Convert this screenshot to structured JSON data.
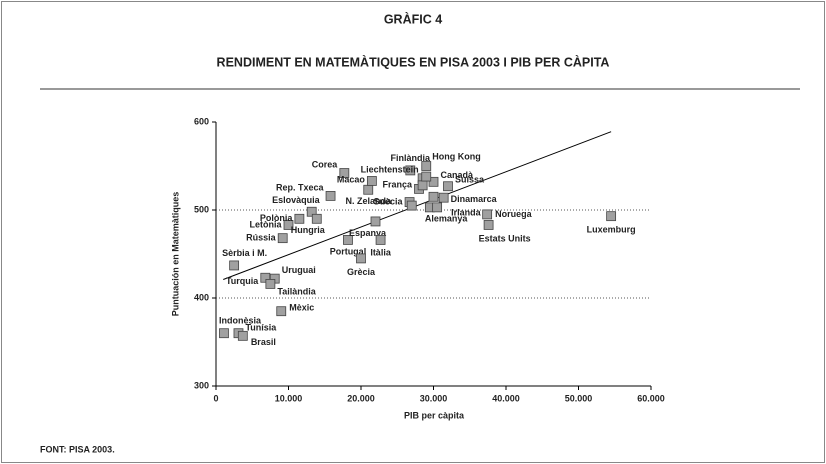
{
  "chart_data": {
    "type": "scatter",
    "heading": "GRÀFIC 4",
    "title": "RENDIMENT EN MATEMÀTIQUES EN PISA 2003 I PIB PER CÀPITA",
    "xlabel": "PIB per càpita",
    "ylabel": "Puntuación en Matemàtiques",
    "source": "FONT: PISA 2003.",
    "color": "#a0a0a0",
    "labels": [
      "Indonèsia",
      "Tunísia",
      "Brasil",
      "Mèxic",
      "Turquia",
      "Uruguai",
      "Tailàndia",
      "Sèrbia i M.",
      "Rússia",
      "Letònia",
      "Polònia",
      "Eslovàquia",
      "Hungria",
      "Rep. Txeca",
      "Corea",
      "Portugal",
      "Grècia",
      "Espanya",
      "N. Zelanda",
      "Macao",
      "Finlàndia",
      "Hong Kong",
      "Liechtenstein",
      "Canadà",
      "Suïssa",
      "França",
      "Suècia",
      "Dinamarca",
      "Alemanya",
      "Irlanda",
      null,
      null,
      null,
      null,
      "Noruega",
      "Estats Units",
      "Luxemburg",
      "Itàlia"
    ],
    "x": [
      1100,
      3100,
      3700,
      9000,
      6800,
      8100,
      7500,
      2500,
      9200,
      10000,
      11500,
      13200,
      13900,
      15800,
      17700,
      18200,
      20000,
      22000,
      21000,
      21500,
      26800,
      29000,
      28500,
      30000,
      32000,
      28000,
      26700,
      31400,
      29500,
      30500,
      28500,
      27000,
      30000,
      29000,
      37400,
      37600,
      54500,
      22700
    ],
    "values": [
      360,
      360,
      357,
      385,
      423,
      422,
      416,
      437,
      468,
      483,
      490,
      498,
      490,
      516,
      542,
      466,
      445,
      487,
      523,
      533,
      545,
      550,
      536,
      532,
      527,
      524,
      509,
      514,
      503,
      503,
      528,
      505,
      515,
      538,
      495,
      483,
      493,
      466
    ],
    "trendline": {
      "x": [
        1000,
        54500
      ],
      "values": [
        421,
        589
      ]
    },
    "xlim": [
      0,
      60000
    ],
    "xticks": [
      0,
      {
        "value": 10000,
        "label": "10.000"
      },
      {
        "value": 20000,
        "label": "20.000"
      },
      {
        "value": 30000,
        "label": "30.000"
      },
      {
        "value": 40000,
        "label": "40.000"
      },
      {
        "value": 50000,
        "label": "50.000"
      },
      {
        "value": 60000,
        "label": "60.000"
      }
    ],
    "ylim": [
      300,
      600
    ],
    "yticks": [
      300,
      400,
      500,
      600
    ],
    "grid": true
  }
}
